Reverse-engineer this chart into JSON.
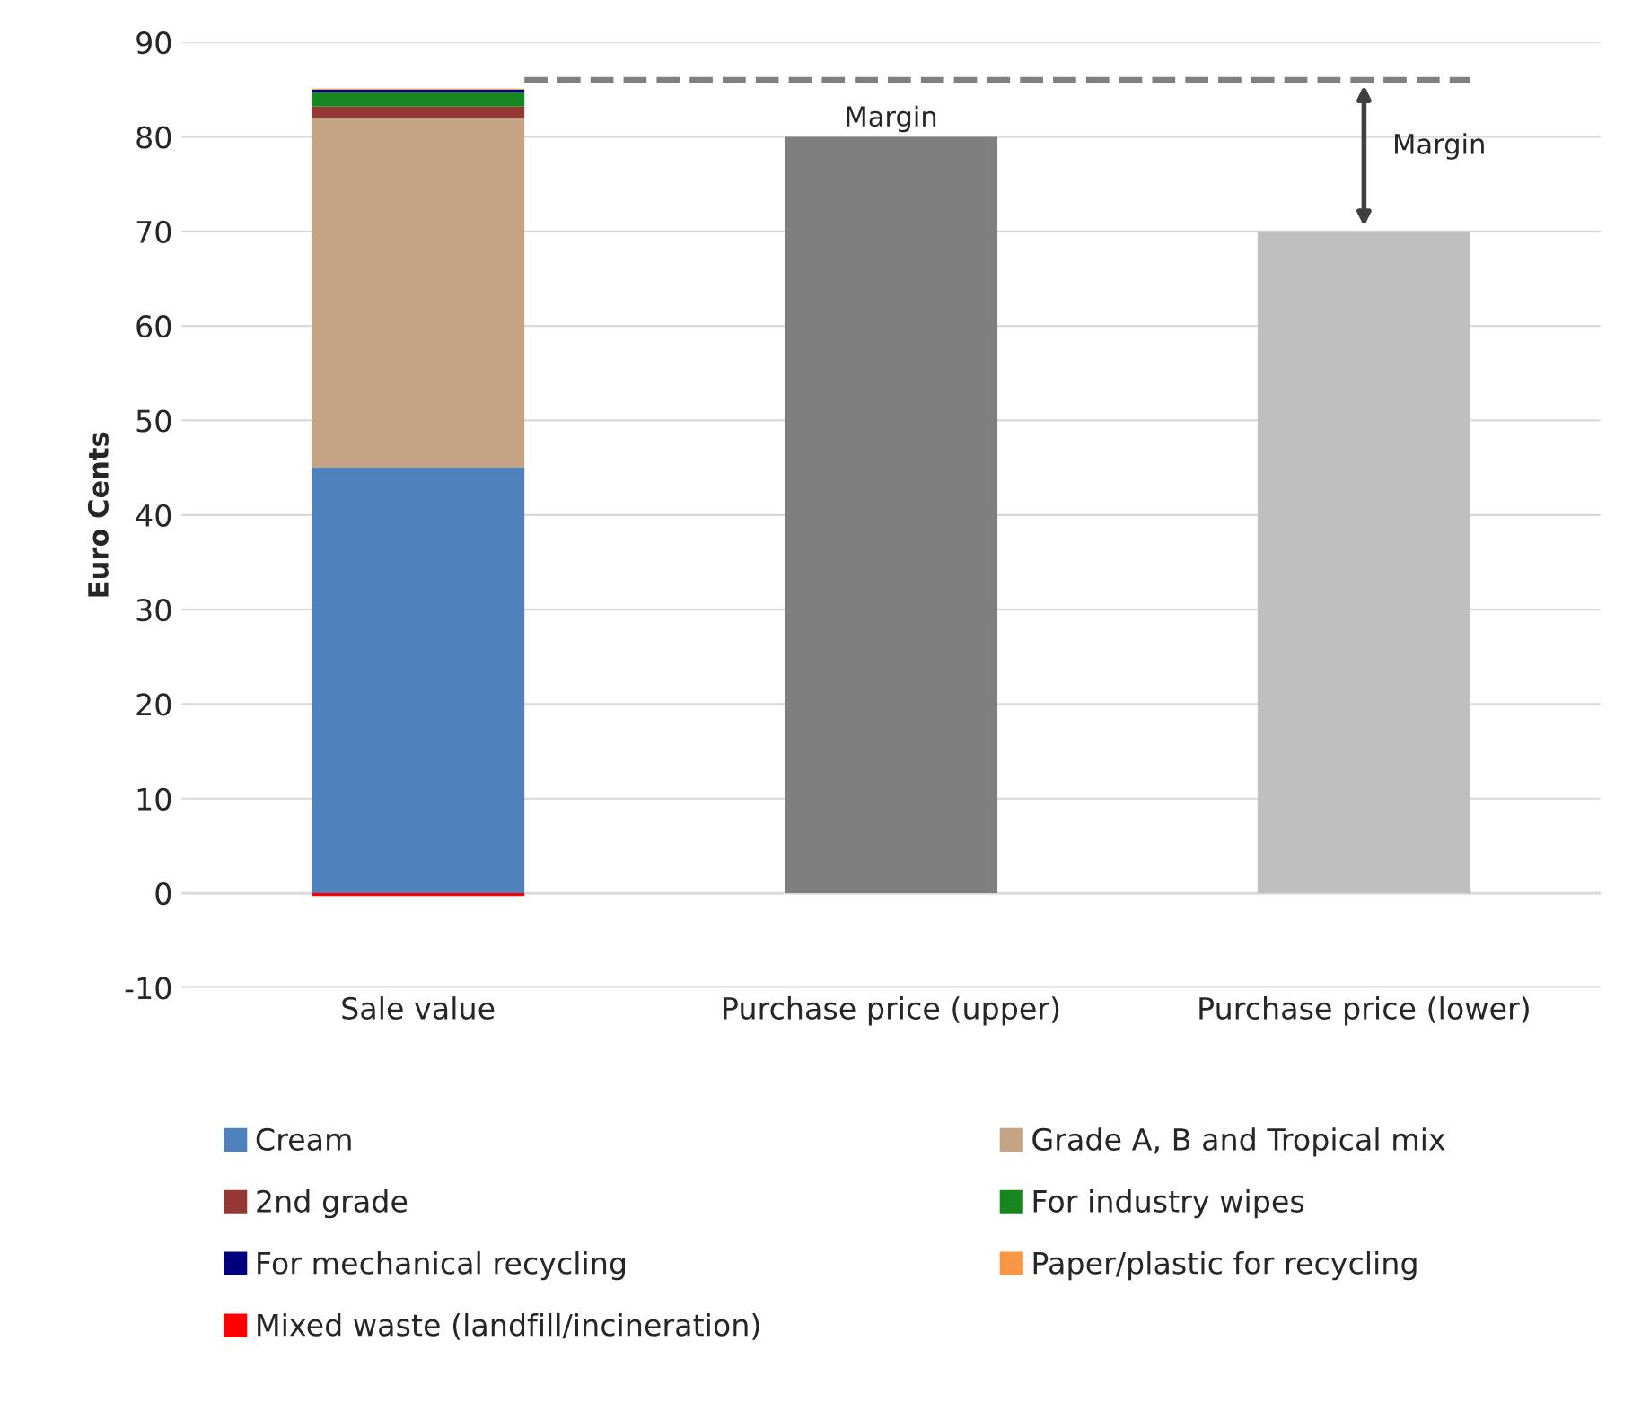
{
  "chart_data": {
    "type": "bar",
    "stacked": true,
    "ylabel": "Euro Cents",
    "categories": [
      "Sale value",
      "Purchase price (upper)",
      "Purchase price (lower)"
    ],
    "series": [
      {
        "name": "Cream",
        "color": "#4f81bd",
        "values": [
          45,
          null,
          null
        ]
      },
      {
        "name": "Grade A, B and Tropical mix",
        "color": "#c4a484",
        "values": [
          37,
          null,
          null
        ]
      },
      {
        "name": "2nd grade",
        "color": "#953735",
        "values": [
          1.2,
          null,
          null
        ]
      },
      {
        "name": "For industry wipes",
        "color": "#17861f",
        "values": [
          1.5,
          null,
          null
        ]
      },
      {
        "name": "For mechanical recycling",
        "color": "#00007f",
        "values": [
          0.3,
          null,
          null
        ]
      },
      {
        "name": "Paper/plastic for recycling",
        "color": "#f79646",
        "values": [
          0.1,
          null,
          null
        ]
      },
      {
        "name": "Mixed waste (landfill/incineration)",
        "color": "#ff0000",
        "values": [
          -0.3,
          null,
          null
        ]
      },
      {
        "colors": [
          null,
          "#7f7f7f",
          "#bfbfbf"
        ],
        "values": [
          null,
          80,
          70
        ]
      }
    ],
    "ylim": [
      -10,
      90
    ],
    "yticks": [
      -10,
      0,
      10,
      20,
      30,
      40,
      50,
      60,
      70,
      80,
      90
    ],
    "grid": "y",
    "legend": "bottom",
    "ref_lines": [
      {
        "axis": "y",
        "value": 86,
        "color": "#7f7f7f",
        "line_style": "dashed"
      }
    ],
    "annotations": [
      "Margin",
      "Margin"
    ]
  }
}
